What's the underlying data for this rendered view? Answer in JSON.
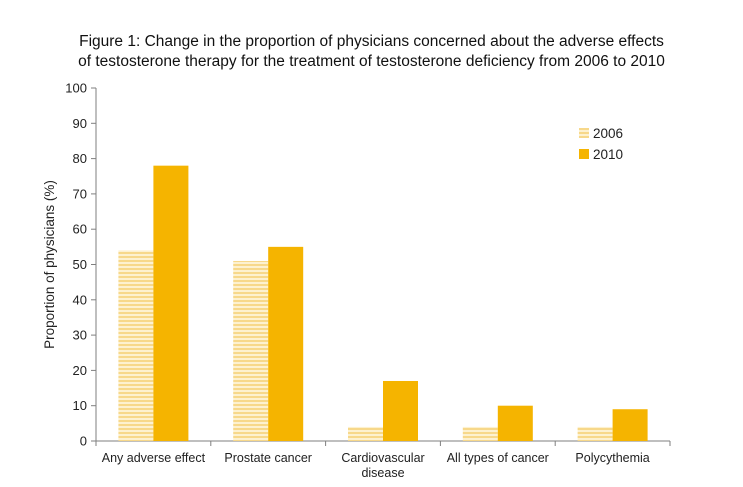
{
  "title_line1": "Figure 1: Change in the proportion of physicians concerned about the adverse effects",
  "title_line2": "of testosterone therapy for the treatment of testosterone deficiency from 2006 to 2010",
  "chart_data": {
    "type": "bar",
    "categories": [
      [
        "Any adverse effect"
      ],
      [
        "Prostate cancer"
      ],
      [
        "Cardiovascular",
        "disease"
      ],
      [
        "All types of cancer"
      ],
      [
        "Polycythemia"
      ]
    ],
    "series": [
      {
        "name": "2006",
        "values": [
          54,
          51,
          4,
          4,
          4
        ],
        "color": "#fbe3a6",
        "pattern": "horizontal-stripes"
      },
      {
        "name": "2010",
        "values": [
          78,
          55,
          17,
          10,
          9
        ],
        "color": "#f5b400"
      }
    ],
    "ylabel": "Proportion of physicians (%)",
    "xlabel": "",
    "ylim": [
      0,
      100
    ],
    "yticks": [
      0,
      10,
      20,
      30,
      40,
      50,
      60,
      70,
      80,
      90,
      100
    ],
    "grid": false,
    "legend_position": "top-right"
  }
}
